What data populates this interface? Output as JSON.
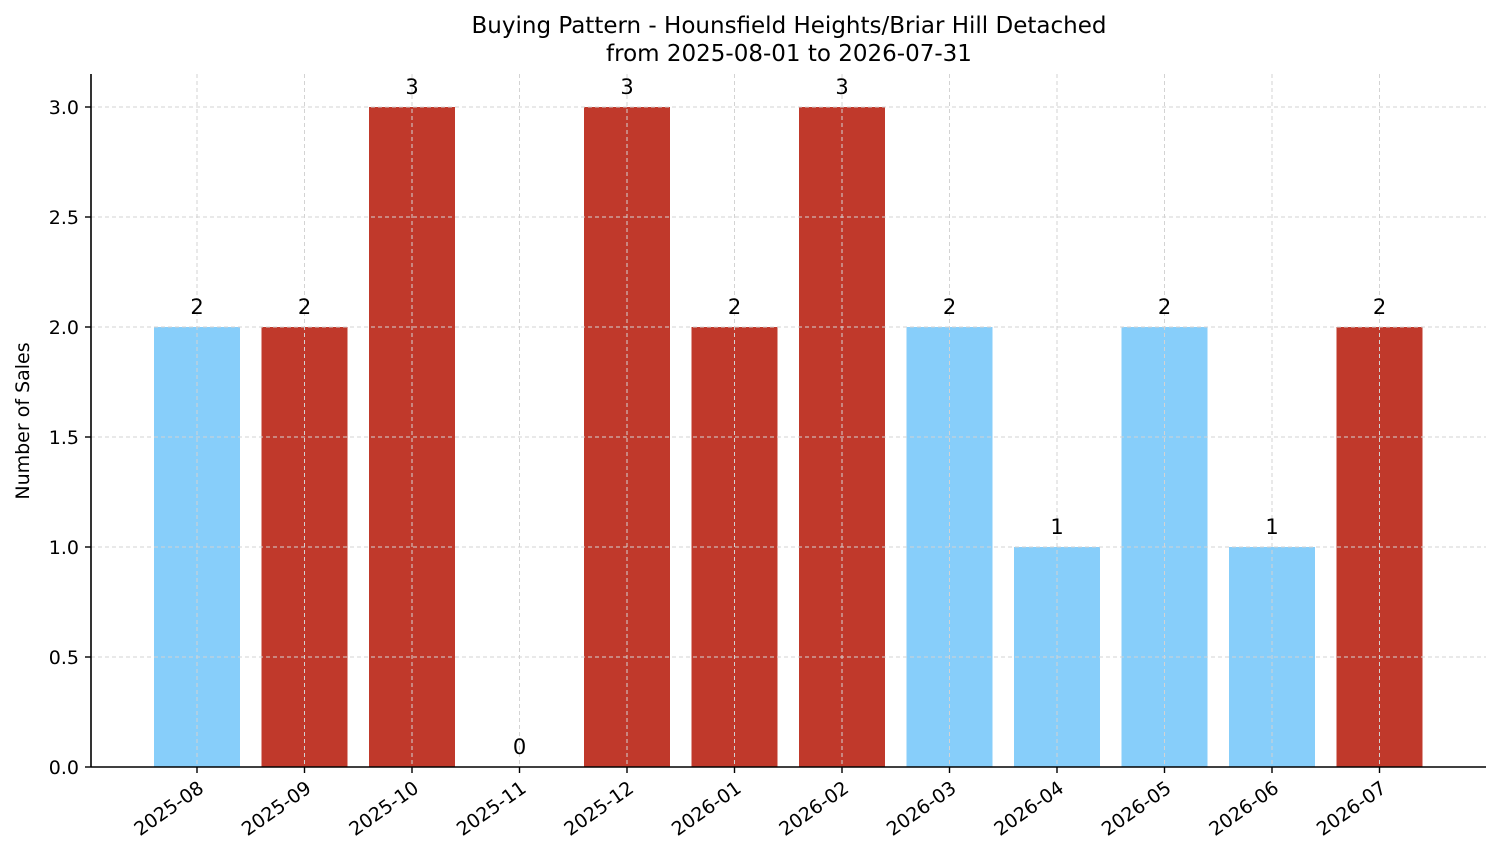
{
  "chart_data": {
    "type": "bar",
    "title": "Buying Pattern - Hounsfield Heights/Briar Hill Detached",
    "subtitle": "from 2025-08-01 to 2026-07-31",
    "xlabel": "",
    "ylabel": "Number of Sales",
    "categories": [
      "2025-08",
      "2025-09",
      "2025-10",
      "2025-11",
      "2025-12",
      "2026-01",
      "2026-02",
      "2026-03",
      "2026-04",
      "2026-05",
      "2026-06",
      "2026-07"
    ],
    "values": [
      2,
      2,
      3,
      0,
      3,
      2,
      3,
      2,
      1,
      2,
      1,
      2
    ],
    "bar_colors": [
      "#87CEFA",
      "#C0392B",
      "#C0392B",
      "#C0392B",
      "#C0392B",
      "#C0392B",
      "#C0392B",
      "#87CEFA",
      "#87CEFA",
      "#87CEFA",
      "#87CEFA",
      "#C0392B"
    ],
    "data_labels": [
      "2",
      "2",
      "3",
      "0",
      "3",
      "2",
      "3",
      "2",
      "1",
      "2",
      "1",
      "2"
    ],
    "ylim": [
      0,
      3.15
    ],
    "yticks": [
      0.0,
      0.5,
      1.0,
      1.5,
      2.0,
      2.5,
      3.0
    ],
    "ytick_labels": [
      "0.0",
      "0.5",
      "1.0",
      "1.5",
      "2.0",
      "2.5",
      "3.0"
    ],
    "grid": true,
    "legend": "none"
  }
}
